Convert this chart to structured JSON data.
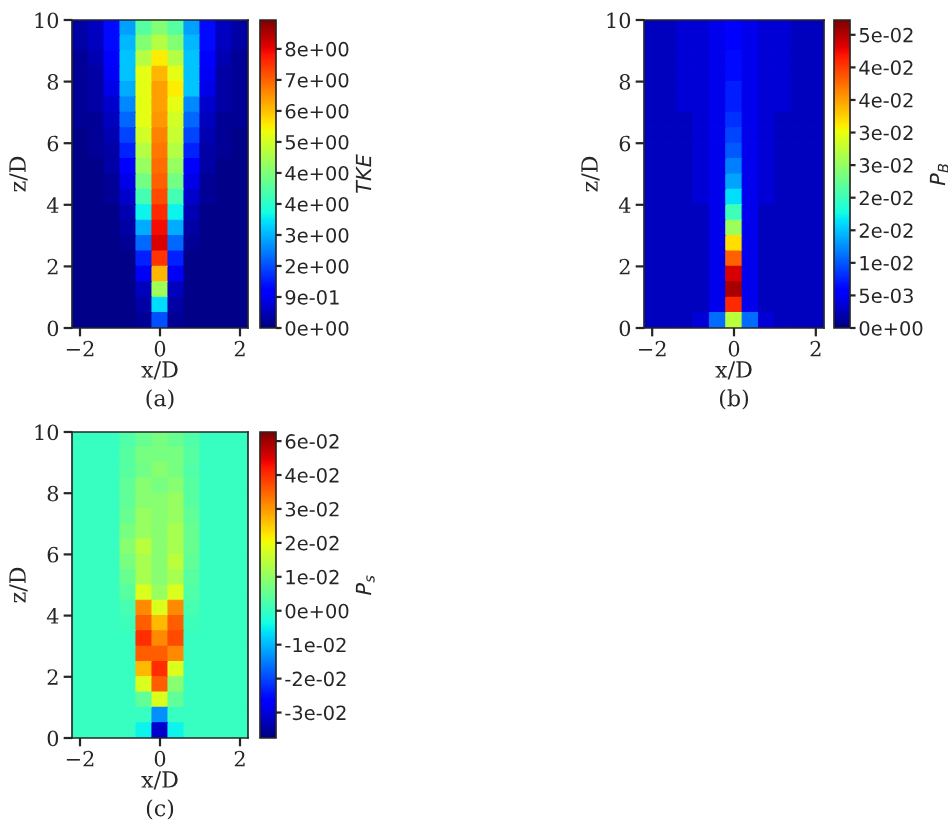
{
  "chart_data": [
    {
      "type": "heatmap",
      "title": "(a)",
      "xlabel": "x/D",
      "ylabel": "z/D",
      "clabel": "TKE",
      "x": [
        -2.0,
        -1.6,
        -1.2,
        -0.8,
        -0.4,
        0.0,
        0.4,
        0.8,
        1.2,
        1.6,
        2.0
      ],
      "y": [
        9.75,
        9.25,
        8.75,
        8.25,
        7.75,
        7.25,
        6.75,
        6.25,
        5.75,
        5.25,
        4.75,
        4.25,
        3.75,
        3.25,
        2.75,
        2.25,
        1.75,
        1.25,
        0.75,
        0.25
      ],
      "cells": [
        [
          0.3,
          0.5,
          1.2,
          2.5,
          4,
          4.5,
          4,
          2.5,
          1.2,
          0.5,
          0.3
        ],
        [
          0.3,
          0.5,
          1.2,
          2.7,
          4.5,
          5,
          4.5,
          2.7,
          1.2,
          0.5,
          0.3
        ],
        [
          0.2,
          0.4,
          1.0,
          2.8,
          5,
          5.8,
          5,
          2.8,
          1.0,
          0.4,
          0.2
        ],
        [
          0.2,
          0.3,
          0.9,
          2.8,
          5.5,
          6.3,
          5.5,
          2.8,
          0.9,
          0.3,
          0.2
        ],
        [
          0.2,
          0.3,
          0.8,
          2.6,
          5.5,
          6.5,
          5.8,
          2.8,
          0.8,
          0.3,
          0.2
        ],
        [
          0.2,
          0.3,
          0.6,
          2.3,
          5.5,
          6.5,
          5.5,
          2.3,
          0.6,
          0.3,
          0.2
        ],
        [
          0.2,
          0.2,
          0.5,
          2.0,
          5.5,
          6.6,
          5.3,
          2.0,
          0.5,
          0.2,
          0.2
        ],
        [
          0.1,
          0.2,
          0.4,
          1.7,
          5.3,
          6.8,
          5.2,
          1.7,
          0.4,
          0.2,
          0.1
        ],
        [
          0.1,
          0.2,
          0.3,
          1.4,
          5,
          6.9,
          5,
          1.4,
          0.3,
          0.2,
          0.1
        ],
        [
          0.1,
          0.1,
          0.3,
          1.1,
          4.7,
          7,
          4.7,
          1.1,
          0.3,
          0.1,
          0.1
        ],
        [
          0.1,
          0.1,
          0.2,
          0.8,
          4.3,
          7.1,
          4.3,
          0.8,
          0.2,
          0.1,
          0.1
        ],
        [
          0.1,
          0.1,
          0.2,
          0.6,
          3.8,
          7.3,
          3.8,
          0.6,
          0.2,
          0.1,
          0.1
        ],
        [
          0.1,
          0.1,
          0.1,
          0.4,
          3.2,
          7.6,
          3.2,
          0.4,
          0.1,
          0.1,
          0.1
        ],
        [
          0.1,
          0.1,
          0.1,
          0.3,
          2.6,
          7.9,
          2.6,
          0.3,
          0.1,
          0.1,
          0.1
        ],
        [
          0.1,
          0.1,
          0.1,
          0.2,
          2.0,
          8.1,
          2.0,
          0.2,
          0.1,
          0.1,
          0.1
        ],
        [
          0.1,
          0.1,
          0.1,
          0.1,
          1.4,
          7.5,
          1.4,
          0.1,
          0.1,
          0.1,
          0.1
        ],
        [
          0.1,
          0.1,
          0.1,
          0.1,
          0.9,
          6.3,
          0.9,
          0.1,
          0.1,
          0.1,
          0.1
        ],
        [
          0.1,
          0.1,
          0.1,
          0.1,
          0.5,
          4.8,
          0.5,
          0.1,
          0.1,
          0.1,
          0.1
        ],
        [
          0.1,
          0.1,
          0.1,
          0.1,
          0.3,
          3.0,
          0.3,
          0.1,
          0.1,
          0.1,
          0.1
        ],
        [
          0.1,
          0.1,
          0.1,
          0.1,
          0.2,
          1.8,
          0.2,
          0.1,
          0.1,
          0.1,
          0.1
        ]
      ],
      "clim": [
        0,
        8.8
      ],
      "cticks": [
        {
          "value": 0,
          "label": "0e+00"
        },
        {
          "value": 0.886,
          "label": "9e-01"
        },
        {
          "value": 1.772,
          "label": "2e+00"
        },
        {
          "value": 2.658,
          "label": "3e+00"
        },
        {
          "value": 3.544,
          "label": "4e+00"
        },
        {
          "value": 4.43,
          "label": "4e+00"
        },
        {
          "value": 5.316,
          "label": "5e+00"
        },
        {
          "value": 6.202,
          "label": "6e+00"
        },
        {
          "value": 7.088,
          "label": "7e+00"
        },
        {
          "value": 7.974,
          "label": "8e+00"
        }
      ],
      "xlim": [
        -2.2,
        2.2
      ],
      "ylim": [
        0,
        10
      ],
      "xticks": [
        -2,
        0,
        2
      ],
      "yticks": [
        0,
        2,
        4,
        6,
        8,
        10
      ]
    },
    {
      "type": "heatmap",
      "title": "(b)",
      "xlabel": "x/D",
      "ylabel": "z/D",
      "clabel": "P$_{B}$",
      "x": [
        -2.0,
        -1.6,
        -1.2,
        -0.8,
        -0.4,
        0.0,
        0.4,
        0.8,
        1.2,
        1.6,
        2.0
      ],
      "y": [
        9.75,
        9.25,
        8.75,
        8.25,
        7.75,
        7.25,
        6.75,
        6.25,
        5.75,
        5.25,
        4.75,
        4.25,
        3.75,
        3.25,
        2.75,
        2.25,
        1.75,
        1.25,
        0.75,
        0.25
      ],
      "cells": [
        [
          0.003,
          0.003,
          0.004,
          0.004,
          0.005,
          0.006,
          0.005,
          0.004,
          0.004,
          0.003,
          0.003
        ],
        [
          0.003,
          0.003,
          0.004,
          0.004,
          0.005,
          0.006,
          0.005,
          0.004,
          0.004,
          0.003,
          0.003
        ],
        [
          0.003,
          0.003,
          0.004,
          0.004,
          0.005,
          0.007,
          0.005,
          0.004,
          0.004,
          0.003,
          0.003
        ],
        [
          0.003,
          0.003,
          0.004,
          0.004,
          0.005,
          0.007,
          0.005,
          0.004,
          0.004,
          0.003,
          0.003
        ],
        [
          0.003,
          0.003,
          0.004,
          0.004,
          0.005,
          0.008,
          0.005,
          0.004,
          0.004,
          0.003,
          0.003
        ],
        [
          0.003,
          0.003,
          0.004,
          0.004,
          0.005,
          0.008,
          0.005,
          0.004,
          0.004,
          0.003,
          0.003
        ],
        [
          0.003,
          0.003,
          0.003,
          0.004,
          0.005,
          0.009,
          0.005,
          0.004,
          0.003,
          0.003,
          0.003
        ],
        [
          0.003,
          0.003,
          0.003,
          0.004,
          0.005,
          0.01,
          0.005,
          0.004,
          0.003,
          0.003,
          0.003
        ],
        [
          0.003,
          0.003,
          0.003,
          0.004,
          0.005,
          0.011,
          0.005,
          0.004,
          0.003,
          0.003,
          0.003
        ],
        [
          0.003,
          0.003,
          0.003,
          0.004,
          0.005,
          0.013,
          0.005,
          0.004,
          0.003,
          0.003,
          0.003
        ],
        [
          0.003,
          0.003,
          0.003,
          0.004,
          0.005,
          0.015,
          0.005,
          0.004,
          0.003,
          0.003,
          0.003
        ],
        [
          0.003,
          0.003,
          0.003,
          0.004,
          0.005,
          0.018,
          0.005,
          0.004,
          0.003,
          0.003,
          0.003
        ],
        [
          0.003,
          0.003,
          0.003,
          0.003,
          0.005,
          0.022,
          0.005,
          0.003,
          0.003,
          0.003,
          0.003
        ],
        [
          0.003,
          0.003,
          0.003,
          0.003,
          0.005,
          0.028,
          0.005,
          0.003,
          0.003,
          0.003,
          0.003
        ],
        [
          0.003,
          0.003,
          0.003,
          0.003,
          0.005,
          0.035,
          0.005,
          0.003,
          0.003,
          0.003,
          0.003
        ],
        [
          0.003,
          0.003,
          0.003,
          0.003,
          0.005,
          0.042,
          0.005,
          0.003,
          0.003,
          0.003,
          0.003
        ],
        [
          0.003,
          0.003,
          0.003,
          0.003,
          0.005,
          0.048,
          0.005,
          0.003,
          0.003,
          0.003,
          0.003
        ],
        [
          0.003,
          0.003,
          0.003,
          0.003,
          0.005,
          0.05,
          0.005,
          0.003,
          0.003,
          0.003,
          0.003
        ],
        [
          0.003,
          0.003,
          0.003,
          0.003,
          0.005,
          0.045,
          0.005,
          0.003,
          0.003,
          0.003,
          0.003
        ],
        [
          0.003,
          0.003,
          0.003,
          0.004,
          0.012,
          0.03,
          0.012,
          0.004,
          0.003,
          0.003,
          0.003
        ]
      ],
      "clim": [
        0,
        0.052
      ],
      "cticks": [
        {
          "value": 0,
          "label": "0e+00"
        },
        {
          "value": 0.0055,
          "label": "5e-03"
        },
        {
          "value": 0.011,
          "label": "1e-02"
        },
        {
          "value": 0.0165,
          "label": "2e-02"
        },
        {
          "value": 0.022,
          "label": "2e-02"
        },
        {
          "value": 0.0275,
          "label": "3e-02"
        },
        {
          "value": 0.033,
          "label": "3e-02"
        },
        {
          "value": 0.0385,
          "label": "4e-02"
        },
        {
          "value": 0.044,
          "label": "4e-02"
        },
        {
          "value": 0.0495,
          "label": "5e-02"
        }
      ],
      "xlim": [
        -2.2,
        2.2
      ],
      "ylim": [
        0,
        10
      ],
      "xticks": [
        -2,
        0,
        2
      ],
      "yticks": [
        0,
        2,
        4,
        6,
        8,
        10
      ]
    },
    {
      "type": "heatmap",
      "title": "(c)",
      "xlabel": "x/D",
      "ylabel": "z/D",
      "clabel": "P$_{s}$",
      "x": [
        -2.0,
        -1.6,
        -1.2,
        -0.8,
        -0.4,
        0.0,
        0.4,
        0.8,
        1.2,
        1.6,
        2.0
      ],
      "y": [
        9.75,
        9.25,
        8.75,
        8.25,
        7.75,
        7.25,
        6.75,
        6.25,
        5.75,
        5.25,
        4.75,
        4.25,
        3.75,
        3.25,
        2.75,
        2.25,
        1.75,
        1.25,
        0.75,
        0.25
      ],
      "cells": [
        [
          0,
          0,
          0,
          0.003,
          0.006,
          0.008,
          0.006,
          0.003,
          0,
          0,
          0
        ],
        [
          0,
          0,
          0,
          0.004,
          0.008,
          0.008,
          0.008,
          0.004,
          0,
          0,
          0
        ],
        [
          0,
          0,
          0,
          0.004,
          0.007,
          0.01,
          0.008,
          0.003,
          0,
          0,
          0
        ],
        [
          0,
          0,
          0,
          0.005,
          0.01,
          0.008,
          0.01,
          0.004,
          0,
          0,
          0
        ],
        [
          0,
          0,
          0,
          0.005,
          0.01,
          0.01,
          0.012,
          0.004,
          0,
          0,
          0
        ],
        [
          0,
          0,
          0,
          0.006,
          0.012,
          0.01,
          0.012,
          0.005,
          0,
          0,
          0
        ],
        [
          0,
          0,
          0,
          0.008,
          0.012,
          0.01,
          0.014,
          0.006,
          0,
          0,
          0
        ],
        [
          0,
          0,
          0,
          0.01,
          0.016,
          0.01,
          0.014,
          0.006,
          0,
          0,
          0
        ],
        [
          0,
          0,
          0,
          0.008,
          0.014,
          0.01,
          0.016,
          0.005,
          0,
          0,
          0
        ],
        [
          0,
          0,
          0,
          0.006,
          0.014,
          0.01,
          0.014,
          0.004,
          0,
          0,
          0
        ],
        [
          0,
          0,
          0,
          0.004,
          0.02,
          0.012,
          0.02,
          0.003,
          0,
          0,
          0
        ],
        [
          0,
          0,
          0,
          0.002,
          0.035,
          0.02,
          0.035,
          0.002,
          0,
          0,
          0
        ],
        [
          0,
          0,
          0,
          0.001,
          0.04,
          0.03,
          0.04,
          0.001,
          0,
          0,
          0
        ],
        [
          0,
          0,
          0,
          0,
          0.045,
          0.035,
          0.042,
          0,
          0,
          0,
          0
        ],
        [
          0,
          0,
          0,
          0,
          0.04,
          0.04,
          0.035,
          0,
          0,
          0,
          0
        ],
        [
          0,
          0,
          0,
          0,
          0.03,
          0.045,
          0.02,
          0,
          0,
          0,
          0
        ],
        [
          0,
          0,
          0,
          0,
          0.02,
          0.04,
          0.01,
          0,
          0,
          0,
          0
        ],
        [
          0,
          0,
          0,
          0,
          0.005,
          0.02,
          0.005,
          0,
          0,
          0,
          0
        ],
        [
          0,
          0,
          0,
          0,
          0,
          -0.015,
          0,
          0,
          0,
          0,
          0
        ],
        [
          0,
          0,
          0,
          0,
          -0.005,
          -0.035,
          -0.005,
          0,
          0,
          0,
          0
        ]
      ],
      "clim": [
        -0.042,
        0.059
      ],
      "cticks": [
        {
          "value": -0.0336,
          "label": "-3e-02"
        },
        {
          "value": -0.0224,
          "label": "-2e-02"
        },
        {
          "value": -0.0112,
          "label": "-1e-02"
        },
        {
          "value": 0,
          "label": "0e+00"
        },
        {
          "value": 0.0112,
          "label": "1e-02"
        },
        {
          "value": 0.0224,
          "label": "2e-02"
        },
        {
          "value": 0.0336,
          "label": "3e-02"
        },
        {
          "value": 0.0448,
          "label": "4e-02"
        },
        {
          "value": 0.056,
          "label": "6e-02"
        }
      ],
      "xlim": [
        -2.2,
        2.2
      ],
      "ylim": [
        0,
        10
      ],
      "xticks": [
        -2,
        0,
        2
      ],
      "yticks": [
        0,
        2,
        4,
        6,
        8,
        10
      ]
    }
  ]
}
